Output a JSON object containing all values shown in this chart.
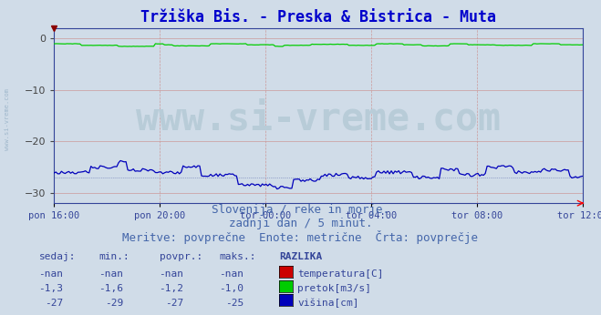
{
  "title": "Tržiška Bis. - Preska & Bistrica - Muta",
  "title_color": "#0000cc",
  "title_fontsize": 12,
  "bg_color": "#d0dce8",
  "plot_bg_color": "#d0dce8",
  "xlabel_ticks": [
    "pon 16:00",
    "pon 20:00",
    "tor 00:00",
    "tor 04:00",
    "tor 08:00",
    "tor 12:00"
  ],
  "ylim": [
    -32,
    2
  ],
  "yticks": [
    0,
    -10,
    -20,
    -30
  ],
  "grid_color_h": "#cc9999",
  "grid_color_v": "#cc9999",
  "n_points": 288,
  "subtitle1": "Slovenija / reke in morje.",
  "subtitle2": "zadnji dan / 5 minut.",
  "subtitle3": "Meritve: povprečne  Enote: metrične  Črta: povprečje",
  "subtitle_color": "#4466aa",
  "subtitle_fontsize": 9,
  "legend_headers": [
    "sedaj:",
    "min.:",
    "povpr.:",
    "maks.:",
    "RAZLIKA"
  ],
  "legend_row1": [
    "-nan",
    "-nan",
    "-nan",
    "-nan",
    "temperatura[C]"
  ],
  "legend_row2": [
    "-1,3",
    "-1,6",
    "-1,2",
    "-1,0",
    "pretok[m3/s]"
  ],
  "legend_row3": [
    "-27",
    "-29",
    "-27",
    "-25",
    "višina[cm]"
  ],
  "legend_color": "#334499",
  "color_temp": "#cc0000",
  "color_pretok": "#00cc00",
  "color_visina": "#0000bb",
  "watermark": "www.si-vreme.com",
  "watermark_color": "#b8ccd8",
  "watermark_fontsize": 30,
  "left_label": "www.si-vreme.com",
  "left_label_color": "#a0b8cc"
}
